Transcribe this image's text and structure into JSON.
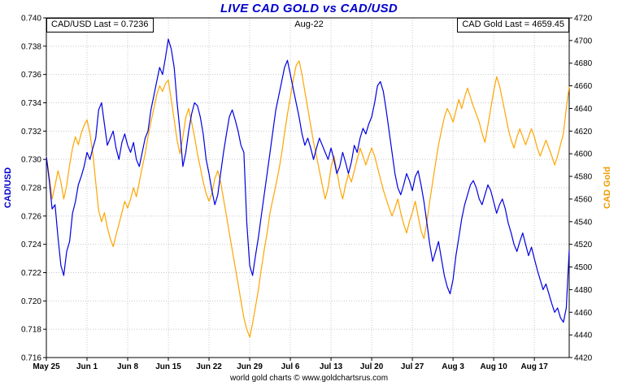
{
  "chart_data": {
    "type": "line",
    "title": "LIVE CAD GOLD vs CAD/USD",
    "title_color": "#0000cc",
    "grid_color": "#c8c8c8",
    "annotations": {
      "cadusd_last": "CAD/USD Last = 0.7236",
      "period": "Aug-22",
      "gold_last": "CAD Gold Last = 4659.45"
    },
    "footer": "world gold charts © www.goldchartsrus.com",
    "x_unit": "days since May 25",
    "x_range": [
      0,
      90
    ],
    "x_ticks": [
      {
        "label": "May 25",
        "day": 0
      },
      {
        "label": "Jun 1",
        "day": 7
      },
      {
        "label": "Jun 8",
        "day": 14
      },
      {
        "label": "Jun 15",
        "day": 21
      },
      {
        "label": "Jun 22",
        "day": 28
      },
      {
        "label": "Jun 29",
        "day": 35
      },
      {
        "label": "Jul 6",
        "day": 42
      },
      {
        "label": "Jul 13",
        "day": 49
      },
      {
        "label": "Jul 20",
        "day": 56
      },
      {
        "label": "Jul 27",
        "day": 63
      },
      {
        "label": "Aug 3",
        "day": 70
      },
      {
        "label": "Aug 10",
        "day": 77
      },
      {
        "label": "Aug 17",
        "day": 84
      }
    ],
    "left_axis": {
      "label": "CAD/USD",
      "color": "#0000cc",
      "min": 0.716,
      "max": 0.74,
      "tick_step": 0.002,
      "ticks": [
        "0.740",
        "0.738",
        "0.736",
        "0.734",
        "0.732",
        "0.730",
        "0.728",
        "0.726",
        "0.724",
        "0.722",
        "0.720",
        "0.718",
        "0.716"
      ]
    },
    "right_axis": {
      "label": "CAD Gold",
      "color": "#ef9b00",
      "min": 4420,
      "max": 4720,
      "tick_step": 20,
      "ticks": [
        "4720",
        "4700",
        "4680",
        "4660",
        "4640",
        "4620",
        "4600",
        "4580",
        "4560",
        "4540",
        "4520",
        "4500",
        "4480",
        "4460",
        "4440",
        "4420"
      ]
    },
    "grid": true,
    "series": [
      {
        "name": "CAD/USD",
        "axis": "left",
        "color": "#0000e0",
        "last": 0.7236,
        "x_start": 0,
        "x_step": 0.5,
        "values": [
          0.7302,
          0.7285,
          0.7265,
          0.7268,
          0.7245,
          0.7225,
          0.7218,
          0.7235,
          0.7242,
          0.7262,
          0.727,
          0.7282,
          0.7288,
          0.7295,
          0.7305,
          0.73,
          0.7308,
          0.7315,
          0.7335,
          0.734,
          0.7325,
          0.731,
          0.7315,
          0.732,
          0.7308,
          0.73,
          0.7312,
          0.7318,
          0.731,
          0.7305,
          0.7312,
          0.73,
          0.7295,
          0.7305,
          0.7315,
          0.732,
          0.7335,
          0.7345,
          0.7355,
          0.7365,
          0.736,
          0.7372,
          0.7385,
          0.7378,
          0.7365,
          0.734,
          0.732,
          0.7295,
          0.7305,
          0.732,
          0.7332,
          0.734,
          0.7338,
          0.733,
          0.7318,
          0.73,
          0.729,
          0.7278,
          0.7268,
          0.7275,
          0.729,
          0.7305,
          0.7318,
          0.733,
          0.7335,
          0.7328,
          0.732,
          0.731,
          0.7305,
          0.7255,
          0.7225,
          0.7218,
          0.7232,
          0.7245,
          0.726,
          0.7275,
          0.729,
          0.7305,
          0.732,
          0.7335,
          0.7345,
          0.7355,
          0.7365,
          0.737,
          0.736,
          0.735,
          0.734,
          0.733,
          0.7318,
          0.731,
          0.7315,
          0.7308,
          0.73,
          0.7308,
          0.7315,
          0.731,
          0.7305,
          0.73,
          0.7308,
          0.73,
          0.729,
          0.7295,
          0.7305,
          0.7298,
          0.729,
          0.7298,
          0.731,
          0.7305,
          0.7315,
          0.7322,
          0.7318,
          0.7325,
          0.733,
          0.734,
          0.7352,
          0.7355,
          0.7348,
          0.7335,
          0.732,
          0.7305,
          0.729,
          0.728,
          0.7275,
          0.7282,
          0.729,
          0.7285,
          0.7278,
          0.7288,
          0.7292,
          0.7282,
          0.727,
          0.7255,
          0.724,
          0.7228,
          0.7235,
          0.7242,
          0.723,
          0.7218,
          0.721,
          0.7205,
          0.7215,
          0.7232,
          0.7245,
          0.7258,
          0.7268,
          0.7275,
          0.7282,
          0.7285,
          0.728,
          0.7272,
          0.7268,
          0.7275,
          0.7282,
          0.7278,
          0.727,
          0.7262,
          0.7268,
          0.7272,
          0.7265,
          0.7255,
          0.7248,
          0.724,
          0.7235,
          0.7242,
          0.7248,
          0.724,
          0.7232,
          0.7238,
          0.723,
          0.7222,
          0.7215,
          0.7208,
          0.7212,
          0.7205,
          0.7198,
          0.7192,
          0.7195,
          0.7188,
          0.7185,
          0.7195,
          0.7236
        ]
      },
      {
        "name": "CAD Gold",
        "axis": "right",
        "color": "#ffa500",
        "last": 4659.45,
        "x_start": 0,
        "x_step": 0.5,
        "values": [
          4598,
          4580,
          4560,
          4572,
          4585,
          4575,
          4560,
          4572,
          4590,
          4605,
          4615,
          4608,
          4618,
          4625,
          4630,
          4618,
          4600,
          4575,
          4550,
          4540,
          4548,
          4535,
          4525,
          4518,
          4528,
          4538,
          4548,
          4558,
          4552,
          4560,
          4570,
          4562,
          4575,
          4588,
          4600,
          4615,
          4628,
          4640,
          4652,
          4660,
          4655,
          4662,
          4665,
          4648,
          4630,
          4612,
          4600,
          4615,
          4632,
          4640,
          4628,
          4615,
          4600,
          4588,
          4575,
          4565,
          4558,
          4565,
          4578,
          4585,
          4575,
          4560,
          4545,
          4530,
          4515,
          4500,
          4485,
          4470,
          4455,
          4445,
          4438,
          4450,
          4465,
          4480,
          4498,
          4515,
          4530,
          4548,
          4560,
          4572,
          4585,
          4600,
          4618,
          4635,
          4650,
          4665,
          4678,
          4682,
          4670,
          4655,
          4640,
          4625,
          4610,
          4598,
          4585,
          4572,
          4560,
          4570,
          4588,
          4598,
          4585,
          4570,
          4560,
          4572,
          4582,
          4575,
          4585,
          4595,
          4605,
          4598,
          4590,
          4598,
          4605,
          4598,
          4588,
          4578,
          4568,
          4560,
          4552,
          4545,
          4552,
          4560,
          4548,
          4538,
          4530,
          4540,
          4548,
          4558,
          4545,
          4532,
          4525,
          4540,
          4558,
          4575,
          4592,
          4608,
          4620,
          4632,
          4640,
          4635,
          4628,
          4638,
          4648,
          4640,
          4650,
          4658,
          4650,
          4642,
          4635,
          4628,
          4618,
          4610,
          4625,
          4640,
          4655,
          4668,
          4660,
          4648,
          4635,
          4622,
          4612,
          4605,
          4615,
          4622,
          4615,
          4608,
          4615,
          4622,
          4615,
          4605,
          4598,
          4605,
          4612,
          4605,
          4598,
          4590,
          4598,
          4608,
          4618,
          4640,
          4659.45
        ]
      }
    ]
  }
}
